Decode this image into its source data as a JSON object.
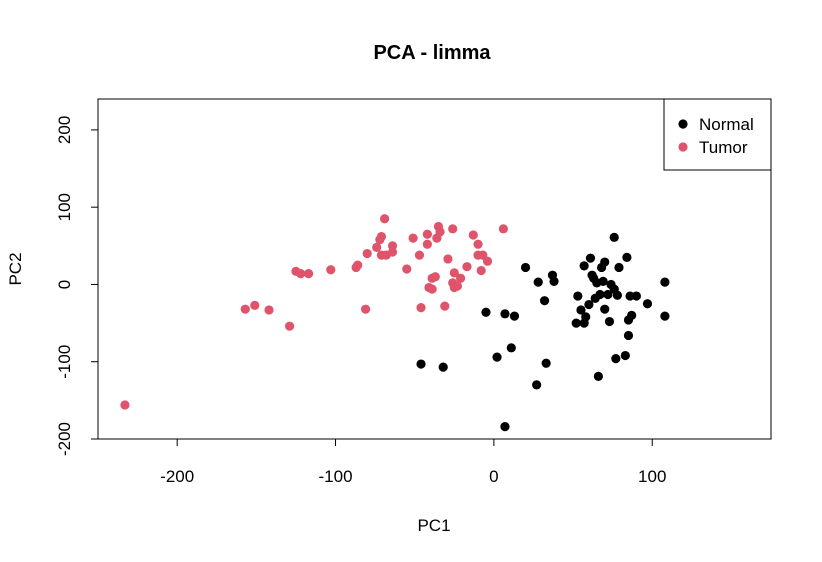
{
  "chart_data": {
    "type": "scatter",
    "title": "PCA - limma",
    "xlabel": "PC1",
    "ylabel": "PC2",
    "xlim": [
      -250,
      175
    ],
    "ylim": [
      -200,
      240
    ],
    "xticks": [
      -200,
      -100,
      0,
      100
    ],
    "yticks": [
      -200,
      -100,
      0,
      100,
      200
    ],
    "xtick_labels": [
      "-200",
      "-100",
      "0",
      "100"
    ],
    "ytick_labels": [
      "-200",
      "-100",
      "0",
      "100",
      "200"
    ],
    "grid": false,
    "legend_position": "top-right",
    "series": [
      {
        "name": "Normal",
        "color": "#000000",
        "points": [
          [
            -46,
            -103
          ],
          [
            -32,
            -107
          ],
          [
            -5,
            -36
          ],
          [
            2,
            -94
          ],
          [
            7,
            -38
          ],
          [
            7,
            -184
          ],
          [
            11,
            -82
          ],
          [
            13,
            -41
          ],
          [
            20,
            22
          ],
          [
            27,
            -130
          ],
          [
            28,
            3
          ],
          [
            32,
            -21
          ],
          [
            33,
            -102
          ],
          [
            37,
            12
          ],
          [
            38,
            4
          ],
          [
            52,
            -50
          ],
          [
            53,
            -15
          ],
          [
            55,
            -33
          ],
          [
            57,
            -50
          ],
          [
            57,
            24
          ],
          [
            58,
            -42
          ],
          [
            60,
            -26
          ],
          [
            61,
            34
          ],
          [
            62,
            12
          ],
          [
            63,
            8
          ],
          [
            64,
            -18
          ],
          [
            65,
            2
          ],
          [
            66,
            -119
          ],
          [
            67,
            -13
          ],
          [
            68,
            22
          ],
          [
            69,
            4
          ],
          [
            70,
            29
          ],
          [
            70,
            -32
          ],
          [
            72,
            -13
          ],
          [
            73,
            -48
          ],
          [
            74,
            0
          ],
          [
            76,
            61
          ],
          [
            76,
            -6
          ],
          [
            77,
            -96
          ],
          [
            78,
            -14
          ],
          [
            79,
            22
          ],
          [
            83,
            -92
          ],
          [
            84,
            35
          ],
          [
            85,
            -66
          ],
          [
            85,
            -46
          ],
          [
            86,
            -15
          ],
          [
            87,
            -40
          ],
          [
            90,
            -15
          ],
          [
            97,
            -25
          ],
          [
            108,
            3
          ],
          [
            108,
            -41
          ]
        ]
      },
      {
        "name": "Tumor",
        "color": "#DF536B",
        "points": [
          [
            -233,
            -156
          ],
          [
            -157,
            -32
          ],
          [
            -151,
            -27
          ],
          [
            -142,
            -33
          ],
          [
            -129,
            -54
          ],
          [
            -125,
            17
          ],
          [
            -122,
            14
          ],
          [
            -117,
            14
          ],
          [
            -103,
            19
          ],
          [
            -87,
            22
          ],
          [
            -86,
            25
          ],
          [
            -81,
            -32
          ],
          [
            -80,
            40
          ],
          [
            -74,
            48
          ],
          [
            -72,
            58
          ],
          [
            -71,
            62
          ],
          [
            -71,
            38
          ],
          [
            -69,
            85
          ],
          [
            -68,
            38
          ],
          [
            -64,
            42
          ],
          [
            -64,
            50
          ],
          [
            -55,
            20
          ],
          [
            -51,
            60
          ],
          [
            -47,
            38
          ],
          [
            -46,
            -30
          ],
          [
            -42,
            65
          ],
          [
            -42,
            52
          ],
          [
            -41,
            -4
          ],
          [
            -39,
            -6
          ],
          [
            -39,
            8
          ],
          [
            -37,
            10
          ],
          [
            -36,
            60
          ],
          [
            -35,
            75
          ],
          [
            -34,
            68
          ],
          [
            -31,
            -28
          ],
          [
            -29,
            33
          ],
          [
            -26,
            72
          ],
          [
            -26,
            2
          ],
          [
            -25,
            15
          ],
          [
            -25,
            -4
          ],
          [
            -23,
            -2
          ],
          [
            -21,
            8
          ],
          [
            -17,
            23
          ],
          [
            -13,
            64
          ],
          [
            -10,
            52
          ],
          [
            -10,
            38
          ],
          [
            -8,
            18
          ],
          [
            -7,
            38
          ],
          [
            -4,
            30
          ],
          [
            6,
            72
          ]
        ]
      }
    ]
  }
}
